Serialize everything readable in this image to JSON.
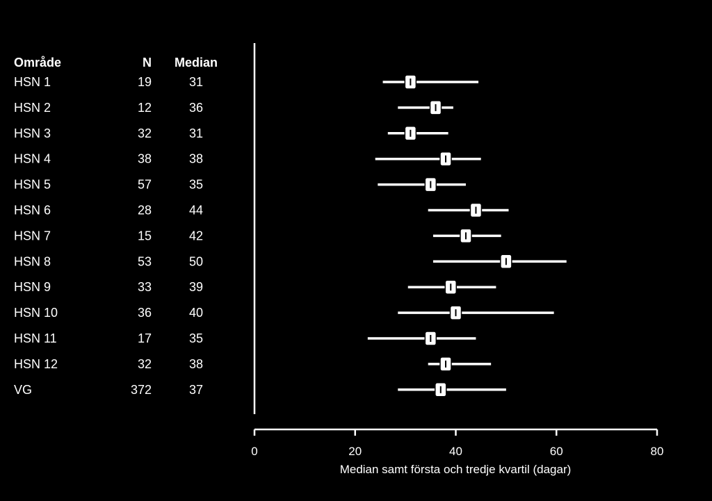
{
  "table": {
    "headers": {
      "area": "Område",
      "n": "N",
      "median": "Median"
    }
  },
  "chart_data": {
    "type": "forest",
    "xlabel": "Median samt första och tredje kvartil (dagar)",
    "xlim": [
      0,
      80
    ],
    "xticks": [
      0,
      20,
      40,
      60,
      80
    ],
    "colors": {
      "background": "#000000",
      "foreground": "#ffffff"
    },
    "rows": [
      {
        "label": "HSN 1",
        "n": 19,
        "median": 31,
        "q1": 25.5,
        "q3": 44.5
      },
      {
        "label": "HSN 2",
        "n": 12,
        "median": 36,
        "q1": 28.5,
        "q3": 39.5
      },
      {
        "label": "HSN 3",
        "n": 32,
        "median": 31,
        "q1": 26.5,
        "q3": 38.5
      },
      {
        "label": "HSN 4",
        "n": 38,
        "median": 38,
        "q1": 24.0,
        "q3": 45.0
      },
      {
        "label": "HSN 5",
        "n": 57,
        "median": 35,
        "q1": 24.5,
        "q3": 42.0
      },
      {
        "label": "HSN 6",
        "n": 28,
        "median": 44,
        "q1": 34.5,
        "q3": 50.5
      },
      {
        "label": "HSN 7",
        "n": 15,
        "median": 42,
        "q1": 35.5,
        "q3": 49.0
      },
      {
        "label": "HSN 8",
        "n": 53,
        "median": 50,
        "q1": 35.5,
        "q3": 62.0
      },
      {
        "label": "HSN 9",
        "n": 33,
        "median": 39,
        "q1": 30.5,
        "q3": 48.0
      },
      {
        "label": "HSN 10",
        "n": 36,
        "median": 40,
        "q1": 28.5,
        "q3": 59.5
      },
      {
        "label": "HSN 11",
        "n": 17,
        "median": 35,
        "q1": 22.5,
        "q3": 44.0
      },
      {
        "label": "HSN 12",
        "n": 32,
        "median": 38,
        "q1": 34.5,
        "q3": 47.0
      },
      {
        "label": "VG",
        "n": 372,
        "median": 37,
        "q1": 28.5,
        "q3": 50.0
      }
    ]
  }
}
